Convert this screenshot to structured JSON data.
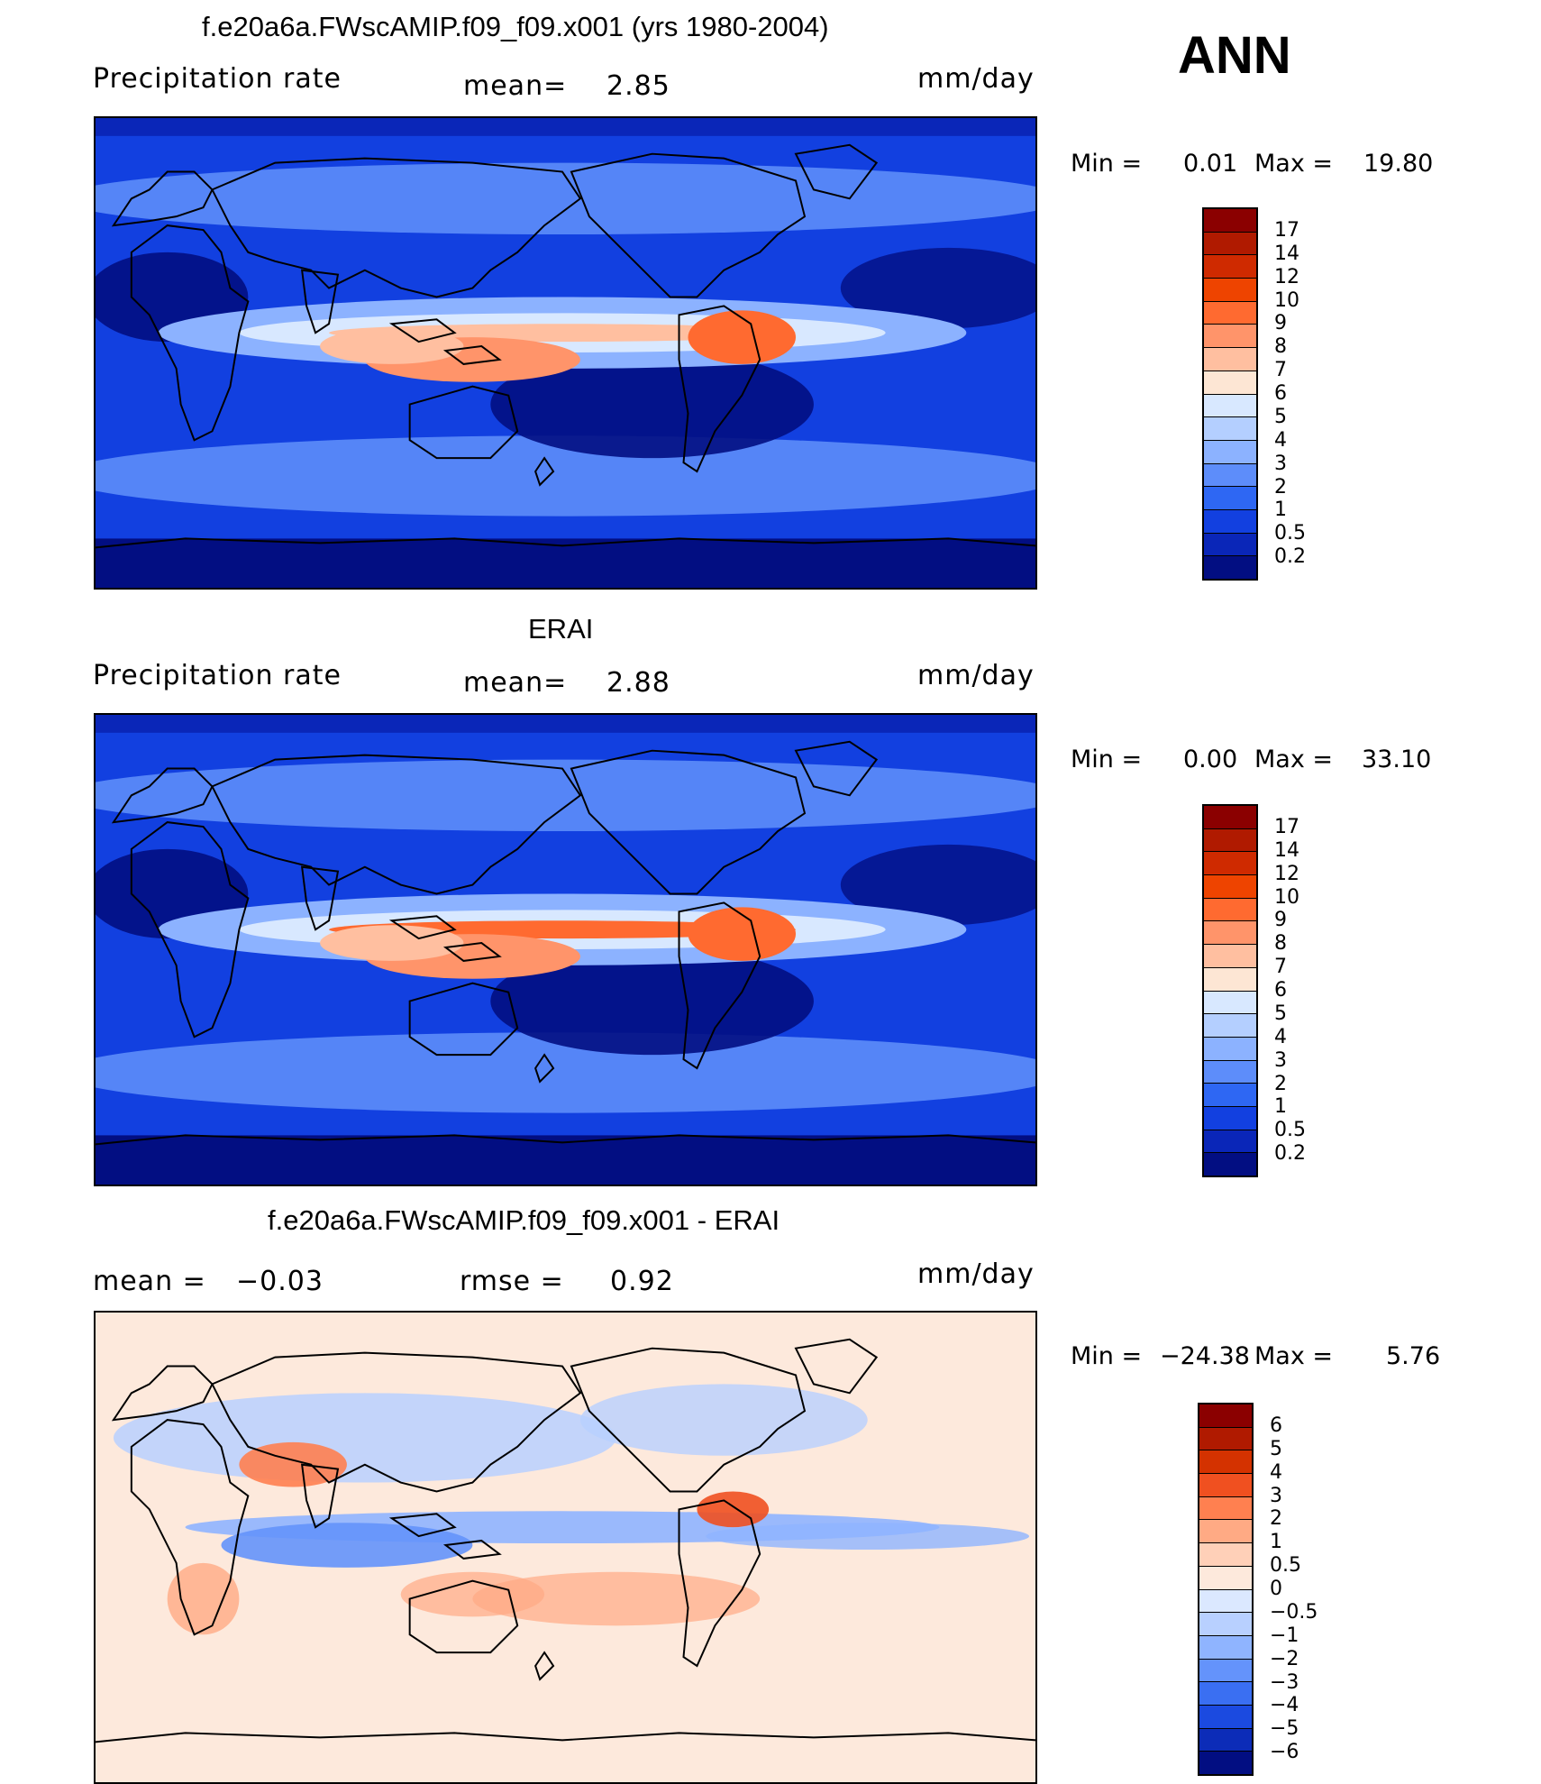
{
  "season": "ANN",
  "panels": [
    {
      "title": "f.e20a6a.FWscAMIP.f09_f09.x001 (yrs 1980-2004)",
      "left_label": "Precipitation rate",
      "mid_label": "mean=",
      "mid_value": "2.85",
      "units": "mm/day",
      "min_label": "Min =",
      "min_value": "0.01",
      "max_label": "Max =",
      "max_value": "19.80",
      "colors": [
        "#8b0000",
        "#b01a00",
        "#cf2a00",
        "#ee4400",
        "#ff6a30",
        "#ff946a",
        "#ffbfa0",
        "#fde6d4",
        "#d8e8ff",
        "#b4cfff",
        "#8cb2ff",
        "#5d8dfa",
        "#2e67f3",
        "#1240e0",
        "#0a26b8",
        "#020e82"
      ],
      "levels": [
        "17",
        "14",
        "12",
        "10",
        "9",
        "8",
        "7",
        "6",
        "5",
        "4",
        "3",
        "2",
        "1",
        "0.5",
        "0.2"
      ],
      "style": "clim1"
    },
    {
      "title": "ERAI",
      "left_label": "Precipitation rate",
      "mid_label": "mean=",
      "mid_value": "2.88",
      "units": "mm/day",
      "min_label": "Min =",
      "min_value": "0.00",
      "max_label": "Max =",
      "max_value": "33.10",
      "colors": [
        "#8b0000",
        "#b01a00",
        "#cf2a00",
        "#ee4400",
        "#ff6a30",
        "#ff946a",
        "#ffbfa0",
        "#fde6d4",
        "#d8e8ff",
        "#b4cfff",
        "#8cb2ff",
        "#5d8dfa",
        "#2e67f3",
        "#1240e0",
        "#0a26b8",
        "#020e82"
      ],
      "levels": [
        "17",
        "14",
        "12",
        "10",
        "9",
        "8",
        "7",
        "6",
        "5",
        "4",
        "3",
        "2",
        "1",
        "0.5",
        "0.2"
      ],
      "style": "clim2"
    },
    {
      "title": "f.e20a6a.FWscAMIP.f09_f09.x001 - ERAI",
      "left_label": "mean =",
      "left_value": "−0.03",
      "mid_label": "rmse =",
      "mid_value": "0.92",
      "units": "mm/day",
      "min_label": "Min =",
      "min_value": "−24.38",
      "max_label": "Max =",
      "max_value": "5.76",
      "colors": [
        "#8b0000",
        "#b01a00",
        "#d43200",
        "#f05020",
        "#ff8050",
        "#ffaa84",
        "#ffd0b8",
        "#fde9dc",
        "#dbe8ff",
        "#b8d0ff",
        "#8fb4ff",
        "#6493fb",
        "#3a6ff2",
        "#1b4ae0",
        "#0c2cb8",
        "#020e82"
      ],
      "levels": [
        "6",
        "5",
        "4",
        "3",
        "2",
        "1",
        "0.5",
        "0",
        "−0.5",
        "−1",
        "−2",
        "−3",
        "−4",
        "−5",
        "−6"
      ],
      "style": "diff"
    }
  ]
}
